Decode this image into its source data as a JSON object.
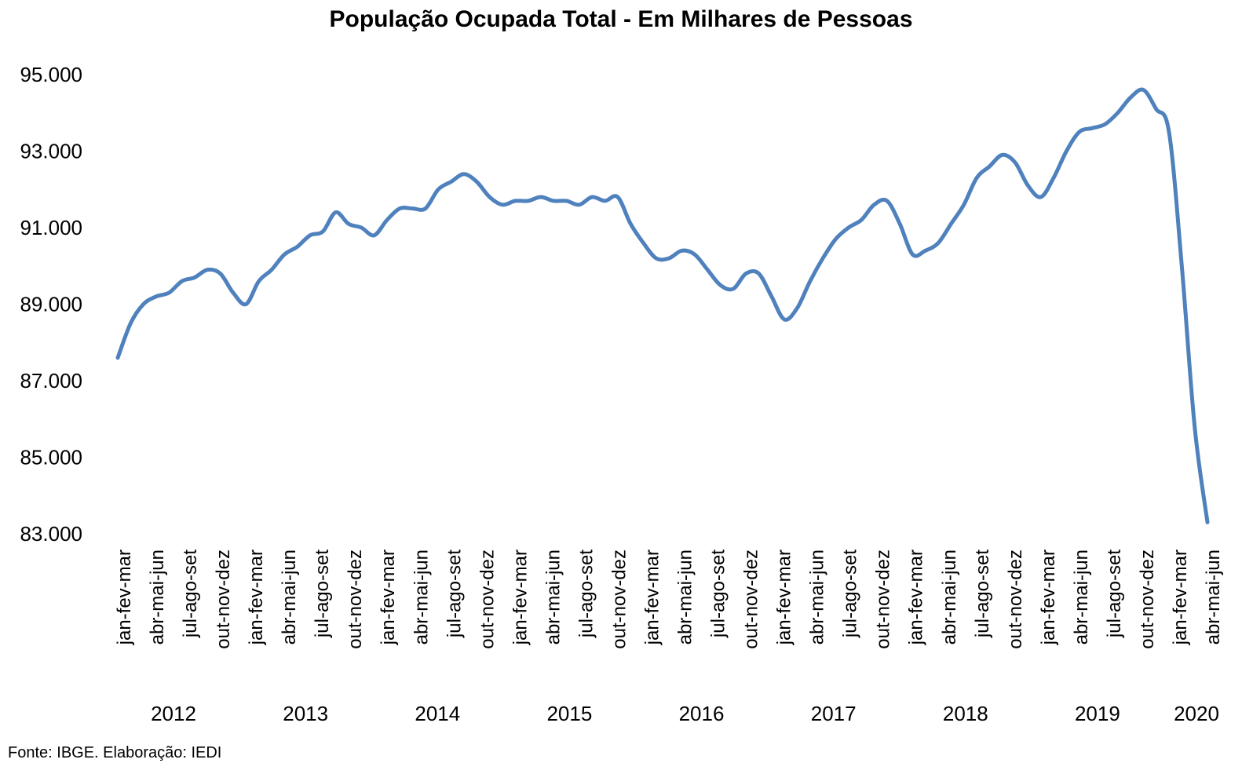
{
  "chart_data": {
    "type": "line",
    "title": "População Ocupada Total - Em Milhares de Pessoas",
    "xlabel": "",
    "ylabel": "",
    "ylim": [
      83000,
      95000
    ],
    "yticks": [
      "95.000",
      "93.000",
      "91.000",
      "89.000",
      "87.000",
      "85.000",
      "83.000"
    ],
    "ytick_values": [
      95000,
      93000,
      91000,
      89000,
      87000,
      85000,
      83000
    ],
    "grid": false,
    "legend": "none",
    "line_color": "#4F81BD",
    "x_tick_labels": [
      "jan-fev-mar",
      "abr-mai-jun",
      "jul-ago-set",
      "out-nov-dez",
      "jan-fev-mar",
      "abr-mai-jun",
      "jul-ago-set",
      "out-nov-dez",
      "jan-fev-mar",
      "abr-mai-jun",
      "jul-ago-set",
      "out-nov-dez",
      "jan-fev-mar",
      "abr-mai-jun",
      "jul-ago-set",
      "out-nov-dez",
      "jan-fev-mar",
      "abr-mai-jun",
      "jul-ago-set",
      "out-nov-dez",
      "jan-fev-mar",
      "abr-mai-jun",
      "jul-ago-set",
      "out-nov-dez",
      "jan-fev-mar",
      "abr-mai-jun",
      "jul-ago-set",
      "out-nov-dez",
      "jan-fev-mar",
      "abr-mai-jun",
      "jul-ago-set",
      "out-nov-dez",
      "jan-fev-mar",
      "abr-mai-jun"
    ],
    "years": [
      "2012",
      "2013",
      "2014",
      "2015",
      "2016",
      "2017",
      "2018",
      "2019",
      "2020"
    ],
    "series": [
      {
        "values": [
          87600,
          88500,
          89000,
          89200,
          89300,
          89600,
          89700,
          89900,
          89800,
          89300,
          89000,
          89600,
          89900,
          90300,
          90500,
          90800,
          90900,
          91400,
          91100,
          91000,
          90800,
          91200,
          91500,
          91500,
          91500,
          92000,
          92200,
          92400,
          92200,
          91800,
          91600,
          91700,
          91700,
          91800,
          91700,
          91700,
          91600,
          91800,
          91700,
          91800,
          91100,
          90600,
          90200,
          90200,
          90400,
          90300,
          89900,
          89500,
          89400,
          89800,
          89800,
          89200,
          88600,
          88900,
          89600,
          90200,
          90700,
          91000,
          91200,
          91600,
          91700,
          91100,
          90300,
          90400,
          90600,
          91100,
          91600,
          92300,
          92600,
          92900,
          92700,
          92100,
          91800,
          92300,
          93000,
          93500,
          93600,
          93700,
          94000,
          94400,
          94600,
          94100,
          93500,
          90000,
          85800,
          83300
        ]
      }
    ]
  },
  "source": "Fonte: IBGE. Elaboração: IEDI"
}
